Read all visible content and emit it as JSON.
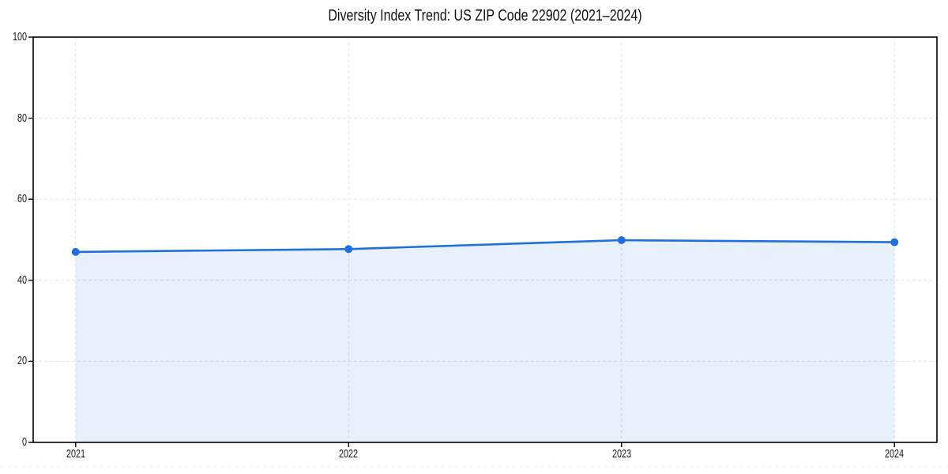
{
  "chart_data": {
    "type": "area",
    "title": "Diversity Index Trend: US ZIP Code 22902 (2021–2024)",
    "categories": [
      "2021",
      "2022",
      "2023",
      "2024"
    ],
    "series": [
      {
        "name": "Diversity Index",
        "values": [
          47.0,
          47.7,
          49.9,
          49.4
        ]
      }
    ],
    "ylim": [
      0,
      100
    ],
    "yticks": [
      0,
      20,
      40,
      60,
      80,
      100
    ],
    "xlabel": "",
    "ylabel": "",
    "legend": "none",
    "grid": "dashed, both axes",
    "marker": "filled-circle",
    "colors": {
      "line": "#1f6fe0",
      "marker": "#1f6fe0",
      "area_fill": "rgba(31,111,224,0.10)",
      "grid": "#e3e3e3",
      "axis": "#000000",
      "tick_label": "#1a1a1a",
      "title": "#111111",
      "background": "#ffffff"
    }
  }
}
